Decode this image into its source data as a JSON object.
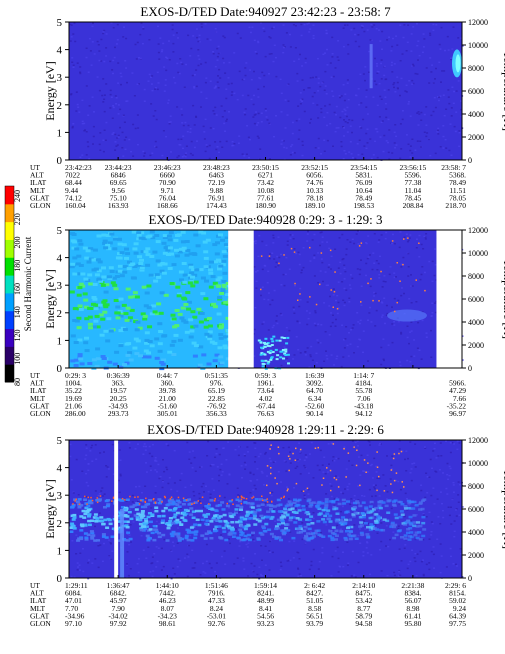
{
  "chart_data": [
    {
      "type": "heatmap",
      "title": "EXOS-D/TED   Date:940927  23:42:23 - 23:58: 7",
      "ylabel": "Energy [eV]",
      "y2label": "Temperature [K]",
      "ylim": [
        0,
        5
      ],
      "yticks": [
        "0",
        "1",
        "2",
        "3",
        "4",
        "5"
      ],
      "y2lim": [
        0,
        12000
      ],
      "y2ticks": [
        "0",
        "2000",
        "4000",
        "6000",
        "8000",
        "10000",
        "12000"
      ],
      "x_ticks": [
        "23:42:23",
        "23:44:23",
        "23:46:23",
        "23:48:23",
        "23:50:15",
        "23:52:15",
        "23:54:15",
        "23:56:15",
        "23:58: 7"
      ],
      "row_labels": [
        "UT",
        "ALT",
        "ILAT",
        "MLT",
        "GLAT",
        "GLON"
      ],
      "rows": [
        [
          "7022",
          "6846",
          "6660",
          "6463",
          "6271",
          "6056.",
          "5831.",
          "5596.",
          "5368."
        ],
        [
          "68.44",
          "69.65",
          "70.90",
          "72.19",
          "73.42",
          "74.76",
          "76.09",
          "77.38",
          "78.49"
        ],
        [
          "9.44",
          "9.56",
          "9.71",
          "9.88",
          "10.08",
          "10.33",
          "10.64",
          "11.04",
          "11.51"
        ],
        [
          "74.12",
          "75.10",
          "76.04",
          "76.91",
          "77.61",
          "78.18",
          "78.49",
          "78.45",
          "78.05"
        ],
        [
          "160.04",
          "163.93",
          "168.66",
          "174.43",
          "180.90",
          "189.10",
          "198.53",
          "208.84",
          "218.70"
        ]
      ],
      "gaps": [],
      "features": [
        "uniform dark-blue background",
        "narrow faint band near 23:54:15 at 3-4 eV",
        "light-blue patch at right edge near 3.5 eV"
      ]
    },
    {
      "type": "heatmap",
      "title": "EXOS-D/TED   Date:940928  0:29: 3 - 1:29: 3",
      "ylabel": "Energy [eV]",
      "y2label": "Temperature [K]",
      "ylim": [
        0,
        5
      ],
      "yticks": [
        "0",
        "1",
        "2",
        "3",
        "4",
        "5"
      ],
      "y2lim": [
        0,
        12000
      ],
      "y2ticks": [
        "0",
        "2000",
        "4000",
        "6000",
        "8000",
        "10000",
        "12000"
      ],
      "x_ticks": [
        "0:29: 3",
        "0:36:39",
        "0:44: 7",
        "0:51:35",
        "0:59: 3",
        "1:6:39",
        "1:14: 7",
        "",
        ""
      ],
      "row_labels": [
        "UT",
        "ALT",
        "ILAT",
        "MLT",
        "GLAT",
        "GLON"
      ],
      "rows": [
        [
          "1004.",
          "363.",
          "360.",
          "976.",
          "1961.",
          "3092.",
          "4184.",
          "",
          "5966."
        ],
        [
          "35.22",
          "19.57",
          "39.78",
          "65.19",
          "73.64",
          "64.70",
          "55.78",
          "",
          "47.29"
        ],
        [
          "19.69",
          "20.25",
          "21.00",
          "22.85",
          "4.02",
          "6.34",
          "7.06",
          "",
          "7.66"
        ],
        [
          "21.06",
          "-34.93",
          "-51.60",
          "-76.92",
          "-67.44",
          "-52.60",
          "-43.18",
          "",
          "-35.22"
        ],
        [
          "286.00",
          "293.73",
          "305.01",
          "356.33",
          "76.63",
          "90.14",
          "94.12",
          "",
          "96.97"
        ]
      ],
      "gaps": [
        [
          0.405,
          0.47
        ],
        [
          0.935,
          1.0
        ]
      ],
      "features": [
        "cyan-green wideband region before first gap (0-5 eV)",
        "green band near 2-3 eV",
        "cyan spike near 0.1 eV after gap",
        "dark-blue region with sparse dots"
      ]
    },
    {
      "type": "heatmap",
      "title": "EXOS-D/TED   Date:940928  1:29:11 - 2:29: 6",
      "ylabel": "Energy [eV]",
      "y2label": "Temperature [K]",
      "ylim": [
        0,
        5
      ],
      "yticks": [
        "0",
        "1",
        "2",
        "3",
        "4",
        "5"
      ],
      "y2lim": [
        0,
        12000
      ],
      "y2ticks": [
        "0",
        "2000",
        "4000",
        "6000",
        "8000",
        "10000",
        "12000"
      ],
      "x_ticks": [
        "1:29:11",
        "1:36:47",
        "1:44:10",
        "1:51:46",
        "1:59:14",
        "2: 6:42",
        "2:14:10",
        "2:21:38",
        "2:29: 6"
      ],
      "row_labels": [
        "UT",
        "ALT",
        "ILAT",
        "MLT",
        "GLAT",
        "GLON"
      ],
      "rows": [
        [
          "6084.",
          "6842.",
          "7442.",
          "7916.",
          "8241.",
          "8427.",
          "8475.",
          "8384.",
          "8154."
        ],
        [
          "47.01",
          "45.97",
          "46.23",
          "47.33",
          "48.99",
          "51.05",
          "53.42",
          "56.07",
          "59.02"
        ],
        [
          "7.70",
          "7.90",
          "8.07",
          "8.24",
          "8.41",
          "8.58",
          "8.77",
          "8.98",
          "9.24"
        ],
        [
          "-34.96",
          "-34.02",
          "-34.23",
          "-53.01",
          "54.56",
          "56.51",
          "58.79",
          "61.41",
          "64.39"
        ],
        [
          "97.10",
          "97.92",
          "98.61",
          "92.76",
          "93.23",
          "93.79",
          "94.58",
          "95.80",
          "97.75"
        ]
      ],
      "gaps": [
        [
          0.115,
          0.125
        ]
      ],
      "features": [
        "light-blue band between 1.5 and 2.8 eV, fading to right",
        "orange dots near 2.8 eV",
        "vertical stripe near 1:36:47",
        "sparse dots above 5000 K on right"
      ]
    }
  ],
  "colorbar": {
    "label": "Second Harmonic Current",
    "ticks": [
      "80",
      "100",
      "120",
      "140",
      "160",
      "180",
      "200",
      "220",
      "240"
    ],
    "colors": [
      "#000000",
      "#2a0068",
      "#3a00c0",
      "#0040ff",
      "#00a0ff",
      "#00e0c0",
      "#00e000",
      "#a0ff00",
      "#ffff00",
      "#ffa000",
      "#ff0000"
    ]
  }
}
